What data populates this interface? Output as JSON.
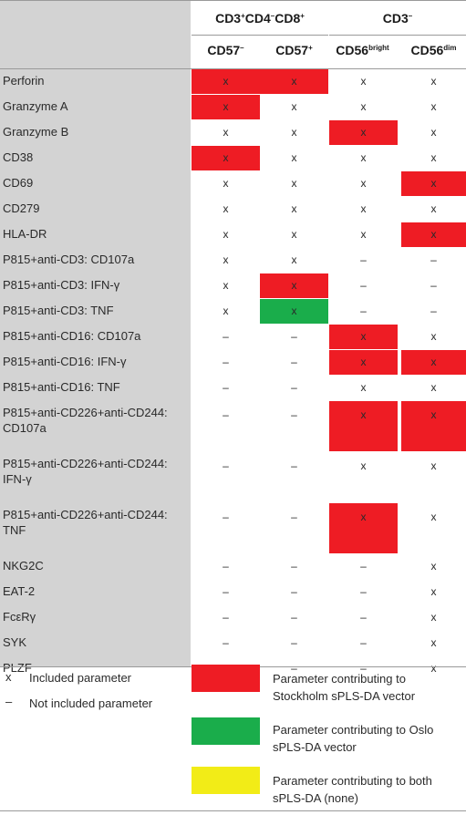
{
  "colors": {
    "stockholm": "#ee1c24",
    "oslo": "#1aad4b",
    "both": "#f2ec17",
    "label_bg": "#d3d3d3"
  },
  "header": {
    "group1": {
      "p1": "CD3",
      "p1s": "+",
      "p2": "CD4",
      "p2s": "–",
      "p3": "CD8",
      "p3s": "+"
    },
    "group2": {
      "p1": "CD3",
      "p1s": "–"
    },
    "columns": [
      {
        "base": "CD57",
        "sup": "–"
      },
      {
        "base": "CD57",
        "sup": "+"
      },
      {
        "base": "CD56",
        "sup": "bright"
      },
      {
        "base": "CD56",
        "sup": "dim"
      }
    ]
  },
  "rows": [
    {
      "label": "Perforin",
      "cells": [
        {
          "text": "x",
          "color": "stockholm"
        },
        {
          "text": "x",
          "color": "stockholm"
        },
        {
          "text": "x"
        },
        {
          "text": "x"
        }
      ]
    },
    {
      "label": "Granzyme A",
      "cells": [
        {
          "text": "x",
          "color": "stockholm"
        },
        {
          "text": "x"
        },
        {
          "text": "x"
        },
        {
          "text": "x"
        }
      ]
    },
    {
      "label": "Granzyme B",
      "cells": [
        {
          "text": "x"
        },
        {
          "text": "x"
        },
        {
          "text": "x",
          "color": "stockholm"
        },
        {
          "text": "x"
        }
      ]
    },
    {
      "label": "CD38",
      "cells": [
        {
          "text": "x",
          "color": "stockholm"
        },
        {
          "text": "x"
        },
        {
          "text": "x"
        },
        {
          "text": "x"
        }
      ]
    },
    {
      "label": "CD69",
      "cells": [
        {
          "text": "x"
        },
        {
          "text": "x"
        },
        {
          "text": "x"
        },
        {
          "text": "x",
          "color": "stockholm"
        }
      ]
    },
    {
      "label": "CD279",
      "cells": [
        {
          "text": "x"
        },
        {
          "text": "x"
        },
        {
          "text": "x"
        },
        {
          "text": "x"
        }
      ]
    },
    {
      "label": "HLA-DR",
      "cells": [
        {
          "text": "x"
        },
        {
          "text": "x"
        },
        {
          "text": "x"
        },
        {
          "text": "x",
          "color": "stockholm"
        }
      ]
    },
    {
      "label": "P815+anti-CD3: CD107a",
      "cells": [
        {
          "text": "x"
        },
        {
          "text": "x"
        },
        {
          "text": "–"
        },
        {
          "text": "–"
        }
      ]
    },
    {
      "label": "P815+anti-CD3: IFN-γ",
      "cells": [
        {
          "text": "x"
        },
        {
          "text": "x",
          "color": "stockholm"
        },
        {
          "text": "–"
        },
        {
          "text": "–"
        }
      ]
    },
    {
      "label": "P815+anti-CD3: TNF",
      "cells": [
        {
          "text": "x"
        },
        {
          "text": "x",
          "color": "oslo"
        },
        {
          "text": "–"
        },
        {
          "text": "–"
        }
      ]
    },
    {
      "label": "P815+anti-CD16: CD107a",
      "cells": [
        {
          "text": "–"
        },
        {
          "text": "–"
        },
        {
          "text": "x",
          "color": "stockholm"
        },
        {
          "text": "x"
        }
      ]
    },
    {
      "label": "P815+anti-CD16: IFN-γ",
      "cells": [
        {
          "text": "–"
        },
        {
          "text": "–"
        },
        {
          "text": "x",
          "color": "stockholm"
        },
        {
          "text": "x",
          "color": "stockholm"
        }
      ]
    },
    {
      "label": "P815+anti-CD16: TNF",
      "cells": [
        {
          "text": "–"
        },
        {
          "text": "–"
        },
        {
          "text": "x"
        },
        {
          "text": "x"
        }
      ]
    },
    {
      "label": "P815+anti-CD226+anti-CD244: CD107a",
      "tall": true,
      "cells": [
        {
          "text": "–"
        },
        {
          "text": "–"
        },
        {
          "text": "x",
          "color": "stockholm"
        },
        {
          "text": "x",
          "color": "stockholm"
        }
      ]
    },
    {
      "label": "P815+anti-CD226+anti-CD244: IFN-γ",
      "tall": true,
      "cells": [
        {
          "text": "–"
        },
        {
          "text": "–"
        },
        {
          "text": "x"
        },
        {
          "text": "x"
        }
      ]
    },
    {
      "label": "P815+anti-CD226+anti-CD244: TNF",
      "tall": true,
      "cells": [
        {
          "text": "–"
        },
        {
          "text": "–"
        },
        {
          "text": "x",
          "color": "stockholm"
        },
        {
          "text": "x"
        }
      ]
    },
    {
      "label": "NKG2C",
      "cells": [
        {
          "text": "–"
        },
        {
          "text": "–"
        },
        {
          "text": "–"
        },
        {
          "text": "x"
        }
      ]
    },
    {
      "label": "EAT-2",
      "cells": [
        {
          "text": "–"
        },
        {
          "text": "–"
        },
        {
          "text": "–"
        },
        {
          "text": "x"
        }
      ]
    },
    {
      "label": "FcεRγ",
      "cells": [
        {
          "text": "–"
        },
        {
          "text": "–"
        },
        {
          "text": "–"
        },
        {
          "text": "x"
        }
      ]
    },
    {
      "label": "SYK",
      "cells": [
        {
          "text": "–"
        },
        {
          "text": "–"
        },
        {
          "text": "–"
        },
        {
          "text": "x"
        }
      ]
    },
    {
      "label": "PLZF",
      "cells": [
        {
          "text": "–"
        },
        {
          "text": "–"
        },
        {
          "text": "–"
        },
        {
          "text": "x"
        }
      ]
    }
  ],
  "legend": {
    "included_symbol": "x",
    "included_text": "Included parameter",
    "not_included_symbol": "–",
    "not_included_text": "Not included parameter",
    "swatches": [
      {
        "color": "stockholm",
        "text": "Parameter contributing to Stockholm sPLS-DA vector"
      },
      {
        "color": "oslo",
        "text": "Parameter contributing to Oslo sPLS-DA vector"
      },
      {
        "color": "both",
        "text": "Parameter contributing to both sPLS-DA (none)"
      }
    ]
  }
}
